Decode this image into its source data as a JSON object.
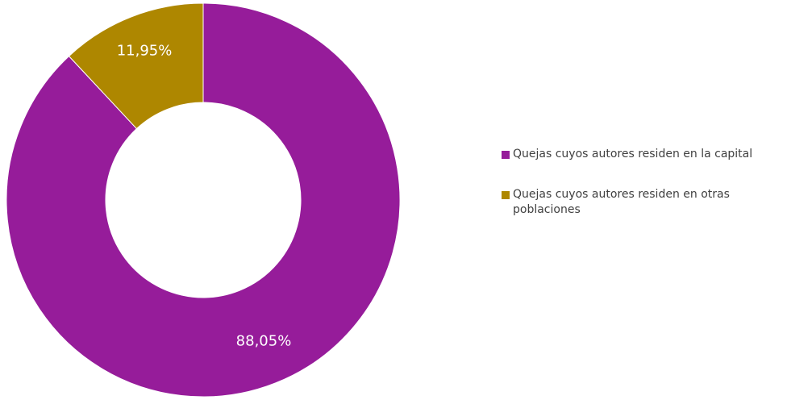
{
  "chart_data": {
    "type": "pie",
    "variant": "donut",
    "title": "",
    "slices": [
      {
        "name": "Quejas cuyos autores residen en la capital",
        "value": 88.05,
        "label": "88,05%",
        "color": "#961c9a"
      },
      {
        "name": "Quejas cuyos autores residen en otras poblaciones",
        "value": 11.95,
        "label": "11,95%",
        "color": "#ae8700"
      }
    ],
    "legend_position": "right",
    "start_angle": "12-o'clock",
    "direction": "clockwise",
    "label_color": "#ffffff"
  }
}
